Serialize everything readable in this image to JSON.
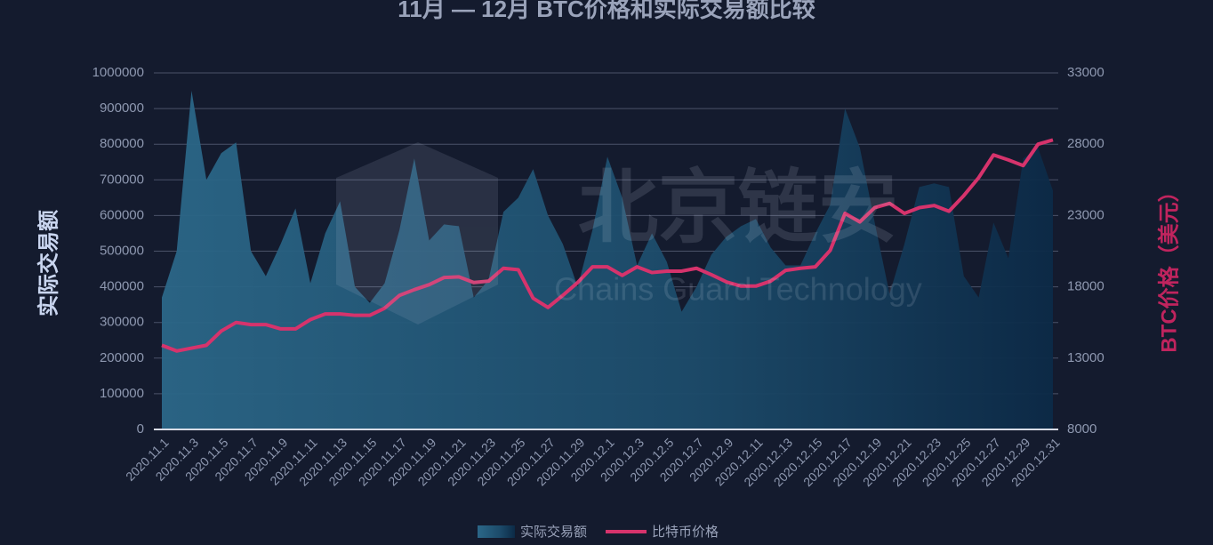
{
  "chart_data": {
    "type": "area-line",
    "title": "11月 — 12月 BTC价格和实际交易额比较",
    "ylabel": "实际交易额",
    "y2label": "BTC价格（美元）",
    "watermark": {
      "text": "北京链安",
      "subtext": "Chains Guard Technology"
    },
    "categories": [
      "2020.11.1",
      null,
      "2020.11.3",
      null,
      "2020.11.5",
      null,
      "2020.11.7",
      null,
      "2020.11.9",
      null,
      "2020.11.11",
      null,
      "2020.11.13",
      null,
      "2020.11.15",
      null,
      "2020.11.17",
      null,
      "2020.11.19",
      null,
      "2020.11.21",
      null,
      "2020.11.23",
      null,
      "2020.11.25",
      null,
      "2020.11.27",
      null,
      "2020.11.29",
      null,
      "2020.12.1",
      null,
      "2020.12.3",
      null,
      "2020.12.5",
      null,
      "2020.12.7",
      null,
      "2020.12.9",
      null,
      "2020.12.11",
      null,
      "2020.12.13",
      null,
      "2020.12.15",
      null,
      "2020.12.17",
      null,
      "2020.12.19",
      null,
      "2020.12.21",
      null,
      "2020.12.23",
      null,
      "2020.12.25",
      null,
      "2020.12.27",
      null,
      "2020.12.29",
      null,
      "2020.12.31"
    ],
    "series": [
      {
        "name": "实际交易额",
        "type": "area",
        "color": "#1f5878",
        "values": [
          370000,
          500000,
          950000,
          700000,
          775000,
          805000,
          500000,
          430000,
          520000,
          620000,
          410000,
          550000,
          640000,
          400000,
          355000,
          410000,
          560000,
          760000,
          530000,
          575000,
          570000,
          370000,
          420000,
          610000,
          650000,
          730000,
          600000,
          520000,
          400000,
          560000,
          765000,
          650000,
          460000,
          550000,
          470000,
          330000,
          400000,
          490000,
          540000,
          570000,
          590000,
          510000,
          460000,
          460000,
          550000,
          630000,
          900000,
          790000,
          580000,
          380000,
          520000,
          680000,
          690000,
          680000,
          430000,
          370000,
          580000,
          480000,
          760000,
          790000,
          670000
        ]
      },
      {
        "name": "比特币价格",
        "type": "line",
        "axis": "y2",
        "color": "#d6336c",
        "values": [
          13900,
          13500,
          13700,
          13900,
          14900,
          15500,
          15350,
          15350,
          15050,
          15050,
          15700,
          16100,
          16100,
          16000,
          16000,
          16500,
          17400,
          17800,
          18150,
          18650,
          18700,
          18300,
          18400,
          19300,
          19200,
          17200,
          16550,
          17400,
          18300,
          19400,
          19400,
          18800,
          19400,
          19000,
          19100,
          19100,
          19300,
          18850,
          18350,
          18050,
          18050,
          18400,
          19150,
          19300,
          19400,
          20550,
          23150,
          22550,
          23550,
          23850,
          23150,
          23550,
          23700,
          23300,
          24400,
          25650,
          27250,
          26900,
          26500,
          28000,
          28300
        ]
      }
    ],
    "ylim": [
      0,
      1000000
    ],
    "yticks": [
      0,
      100000,
      200000,
      300000,
      400000,
      500000,
      600000,
      700000,
      800000,
      900000,
      1000000
    ],
    "y2lim": [
      8000,
      33000
    ],
    "y2ticks": [
      8000,
      13000,
      18000,
      23000,
      28000,
      33000
    ],
    "grid": true
  }
}
